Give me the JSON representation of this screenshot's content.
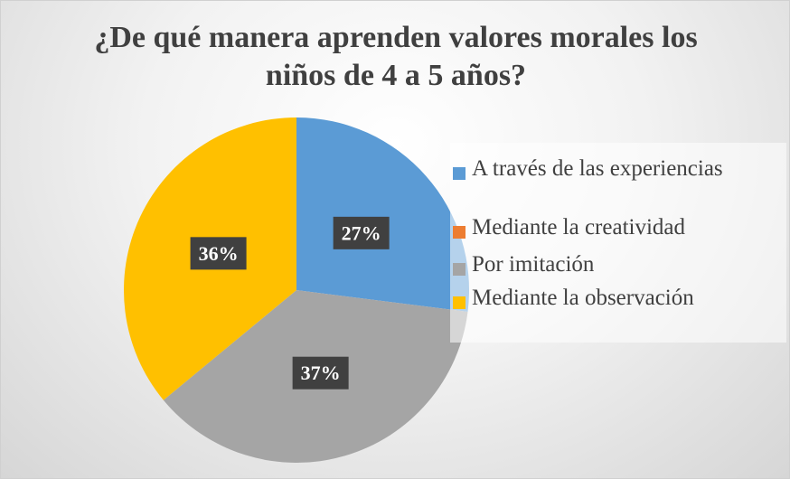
{
  "chart_data": {
    "type": "pie",
    "title": "¿De qué manera aprenden valores morales los niños de 4 a 5 años?",
    "categories": [
      "A través de las experiencias",
      "Mediante la creatividad",
      "Por imitación",
      "Mediante la observación"
    ],
    "values": [
      27,
      0,
      37,
      36
    ],
    "value_labels": [
      "27%",
      null,
      "37%",
      "36%"
    ],
    "colors": [
      "#5b9bd5",
      "#ed7d31",
      "#a5a5a5",
      "#ffc000"
    ],
    "legend": "right"
  }
}
